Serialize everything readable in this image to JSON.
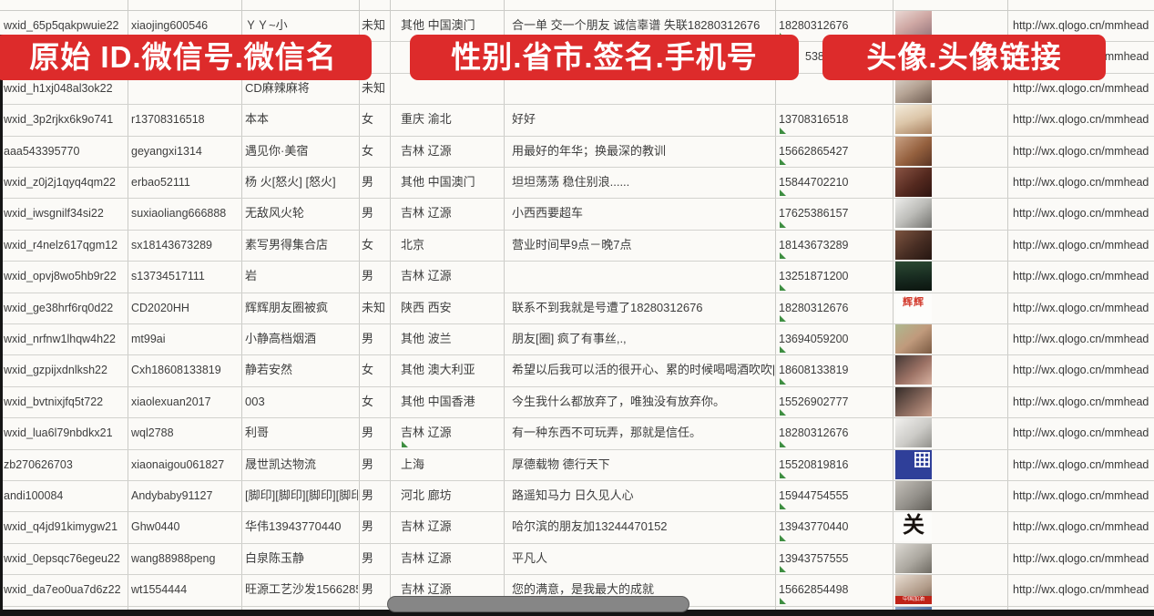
{
  "app": {
    "description": "spreadsheet of WeChat account data with red annotation banners"
  },
  "banners": [
    {
      "label": "原始 ID.微信号.微信名"
    },
    {
      "label": "性别.省市.签名.手机号"
    },
    {
      "label": "头像.头像链接"
    }
  ],
  "colors": {
    "banner_red": "#dd2b2b",
    "grid_line": "#cbcbc7",
    "text": "#3d3d3d",
    "green_mark": "#3e8e41",
    "scrollbar_track": "#151515",
    "scrollbar_thumb": "#868686"
  },
  "rows": [
    {
      "wxid": "wxid_65p5qakpwuie22",
      "wechat_id": "xiaojing600546",
      "nickname": "ＹＹ~小",
      "gender": "未知",
      "region": "其他 中国澳门",
      "signature": "合一单 交一个朋友 诚信辜谱 失联18280312676",
      "phone": "18280312676",
      "phone_mark": true,
      "avatar": "photo-girl-pink",
      "link": "http://wx.qlogo.cn/mmhead"
    },
    {
      "phone_fragment": "5386",
      "avatar": "photo-girl-2",
      "link": "http://wx.qlogo.cn/mmhead"
    },
    {
      "wxid": "wxid_h1xj048al3ok22",
      "wechat_id": "",
      "nickname": "CD麻辣麻将",
      "gender": "未知",
      "region": "",
      "signature": "",
      "phone": "",
      "avatar": "photo-girl-3",
      "link": "http://wx.qlogo.cn/mmhead"
    },
    {
      "wxid": "wxid_3p2rjkx6k9o741",
      "wechat_id": "r13708316518",
      "nickname": "本本",
      "gender": "女",
      "region": "重庆 渝北",
      "signature": "好好",
      "phone": "13708316518",
      "phone_mark": true,
      "avatar": "photo-horse",
      "link": "http://wx.qlogo.cn/mmhead"
    },
    {
      "wxid": "aaa543395770",
      "wechat_id": "geyangxi1314",
      "nickname": "遇见你·美宿",
      "gender": "女",
      "region": "吉林 辽源",
      "signature": "用最好的年华；换最深的教训",
      "phone": "15662865427",
      "phone_mark": true,
      "avatar": "photo-people-warm",
      "link": "http://wx.qlogo.cn/mmhead"
    },
    {
      "wxid": "wxid_z0j2j1qyq4qm22",
      "wechat_id": "erbao52111",
      "nickname": "杨 火[怒火] [怒火]",
      "gender": "男",
      "region": "其他 中国澳门",
      "signature": "坦坦荡荡 稳住别浪......",
      "phone": "15844702210",
      "phone_mark": true,
      "avatar": "photo-group-dark",
      "link": "http://wx.qlogo.cn/mmhead"
    },
    {
      "wxid": "wxid_iwsgnilf34si22",
      "wechat_id": "suxiaoliang666888",
      "nickname": "无敌风火轮",
      "gender": "男",
      "region": "吉林 辽源",
      "signature": "小西西要超车",
      "phone": "17625386157",
      "phone_mark": true,
      "avatar": "photo-car-gray",
      "link": "http://wx.qlogo.cn/mmhead"
    },
    {
      "wxid": "wxid_r4nelz617qgm12",
      "wechat_id": "sx18143673289",
      "nickname": "素写男得集合店",
      "gender": "女",
      "region": "北京",
      "signature": "营业时间早9点－晚7点",
      "phone": "18143673289",
      "phone_mark": true,
      "avatar": "photo-store-dark",
      "link": "http://wx.qlogo.cn/mmhead"
    },
    {
      "wxid": "wxid_opvj8wo5hb9r22",
      "wechat_id": "s13734517111",
      "nickname": "岩",
      "gender": "男",
      "region": "吉林 辽源",
      "signature": "",
      "phone": "13251871200",
      "phone_mark": true,
      "avatar": "poster-dark-green",
      "link": "http://wx.qlogo.cn/mmhead"
    },
    {
      "wxid": "wxid_ge38hrf6rq0d22",
      "wechat_id": "CD2020HH",
      "nickname": "辉辉朋友圈被疯",
      "gender": "未知",
      "region": "陕西 西安",
      "signature": "联系不到我就是号遭了18280312676",
      "phone": "18280312676",
      "phone_mark": true,
      "avatar": "text-huihui",
      "avatar_text": "辉辉",
      "link": "http://wx.qlogo.cn/mmhead"
    },
    {
      "wxid": "wxid_nrfnw1lhqw4h22",
      "wechat_id": "mt99ai",
      "nickname": "小静高档烟酒",
      "gender": "男",
      "region": "其他 波兰",
      "signature": "朋友[圈] 疯了有事丝,.,",
      "phone": "13694059200",
      "phone_mark": true,
      "avatar": "photo-girl-outdoor",
      "link": "http://wx.qlogo.cn/mmhead"
    },
    {
      "wxid": "wxid_gzpijxdnlksh22",
      "wechat_id": "Cxh18608133819",
      "nickname": "静若安然",
      "gender": "女",
      "region": "其他 澳大利亚",
      "signature": "希望以后我可以活的很开心、累的时候喝喝酒吹吹[",
      "phone": "18608133819",
      "phone_mark": true,
      "avatar": "photo-face-1",
      "link": "http://wx.qlogo.cn/mmhead"
    },
    {
      "wxid": "wxid_bvtnixjfq5t722",
      "wechat_id": "xiaolexuan2017",
      "nickname": "003",
      "gender": "女",
      "region": "其他 中国香港",
      "signature": "今生我什么都放弃了，唯独没有放弃你。",
      "phone": "15526902777",
      "phone_mark": true,
      "avatar": "photo-face-2",
      "link": "http://wx.qlogo.cn/mmhead"
    },
    {
      "wxid": "wxid_lua6l79nbdkx21",
      "wechat_id": "wql2788",
      "nickname": "利哥",
      "gender": "男",
      "region": "吉林 辽源",
      "region_mark": true,
      "signature": "有一种东西不可玩弄，那就是信任。",
      "phone": "18280312676",
      "phone_mark": true,
      "avatar": "photo-person-light",
      "link": "http://wx.qlogo.cn/mmhead"
    },
    {
      "wxid": "zb270626703",
      "wechat_id": "xiaonaigou061827",
      "nickname": "晟世凯达物流",
      "gender": "男",
      "region": "上海",
      "signature": "厚德载物 德行天下",
      "phone": "15520819816",
      "phone_mark": true,
      "avatar": "qr-blue",
      "link": "http://wx.qlogo.cn/mmhead"
    },
    {
      "wxid": "andi100084",
      "wechat_id": "Andybaby91127",
      "nickname": "[脚印][脚印][脚印][脚印]",
      "gender": "男",
      "region": "河北 廊坊",
      "signature": "路遥知马力 日久见人心",
      "phone": "15944754555",
      "phone_mark": true,
      "avatar": "photo-steps-gray",
      "link": "http://wx.qlogo.cn/mmhead"
    },
    {
      "wxid": "wxid_q4jd91kimygw21",
      "wechat_id": "Ghw0440",
      "nickname": "华伟13943770440",
      "gender": "男",
      "region": "吉林 辽源",
      "signature": "哈尔滨的朋友加13244470152",
      "phone": "13943770440",
      "phone_mark": true,
      "avatar": "text-guan",
      "avatar_text": "关",
      "link": "http://wx.qlogo.cn/mmhead"
    },
    {
      "wxid": "wxid_0epsqc76egeu22",
      "wechat_id": "wang88988peng",
      "nickname": "白泉陈玉静",
      "gender": "男",
      "region": "吉林 辽源",
      "signature": "平凡人",
      "phone": "13943757555",
      "phone_mark": true,
      "avatar": "photo-person-gray",
      "link": "http://wx.qlogo.cn/mmhead"
    },
    {
      "wxid": "wxid_da7eo0ua7d6z22",
      "wechat_id": "wt1554444",
      "nickname": "旺源工艺沙发15662854",
      "gender": "男",
      "region": "吉林 辽源",
      "signature": "您的满意，是我最大的成就",
      "phone": "15662854498",
      "phone_mark": true,
      "avatar": "photo-redband",
      "avatar_text": "中国加油",
      "link": "http://wx.qlogo.cn/mmhead"
    },
    {
      "avatar": "photo-person-blue"
    }
  ]
}
